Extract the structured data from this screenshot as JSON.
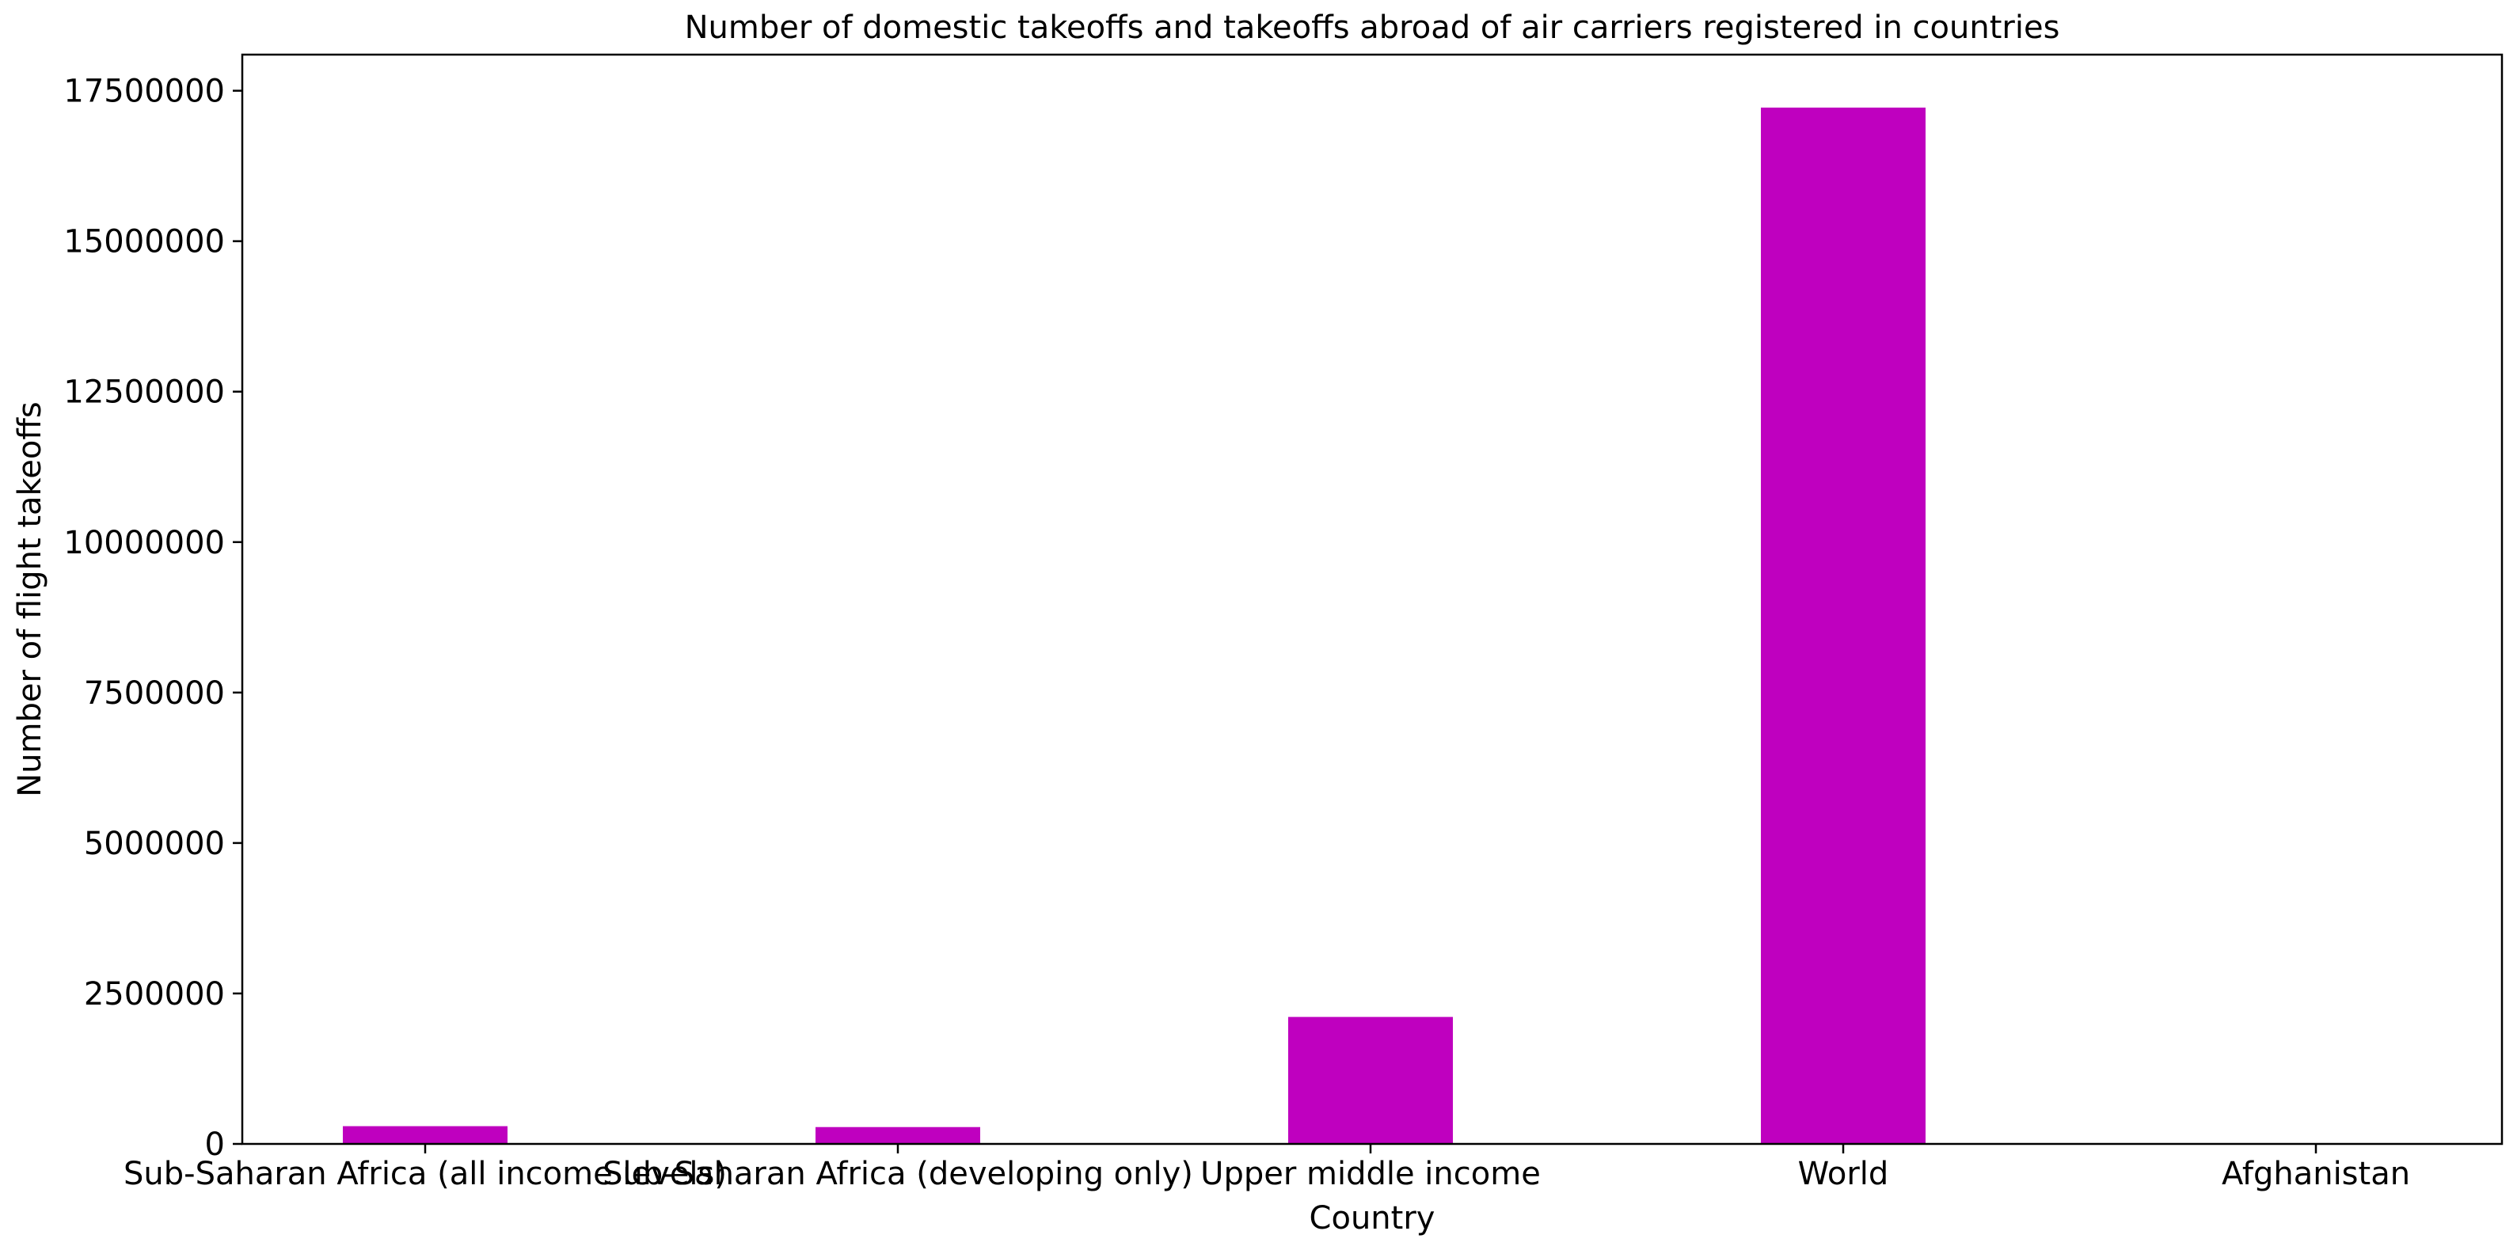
{
  "chart_data": {
    "type": "bar",
    "title": "Number of domestic takeoffs and takeoffs abroad of air carriers registered in countries",
    "xlabel": "Country",
    "ylabel": "Number of flight takeoffs",
    "categories": [
      "Sub-Saharan Africa (all income levels)",
      "Sub-Saharan Africa (developing only)",
      "Upper middle income",
      "World",
      "Afghanistan"
    ],
    "values": [
      295000,
      280000,
      2110000,
      17220000,
      0
    ],
    "ylim": [
      0,
      18100000
    ],
    "yticks": [
      0,
      2500000,
      5000000,
      7500000,
      10000000,
      12500000,
      15000000,
      17500000
    ],
    "ytick_labels": [
      "0",
      "2500000",
      "5000000",
      "7500000",
      "10000000",
      "12500000",
      "15000000",
      "17500000"
    ],
    "bar_color": "#bf00bf",
    "grid": false,
    "legend": "none"
  }
}
